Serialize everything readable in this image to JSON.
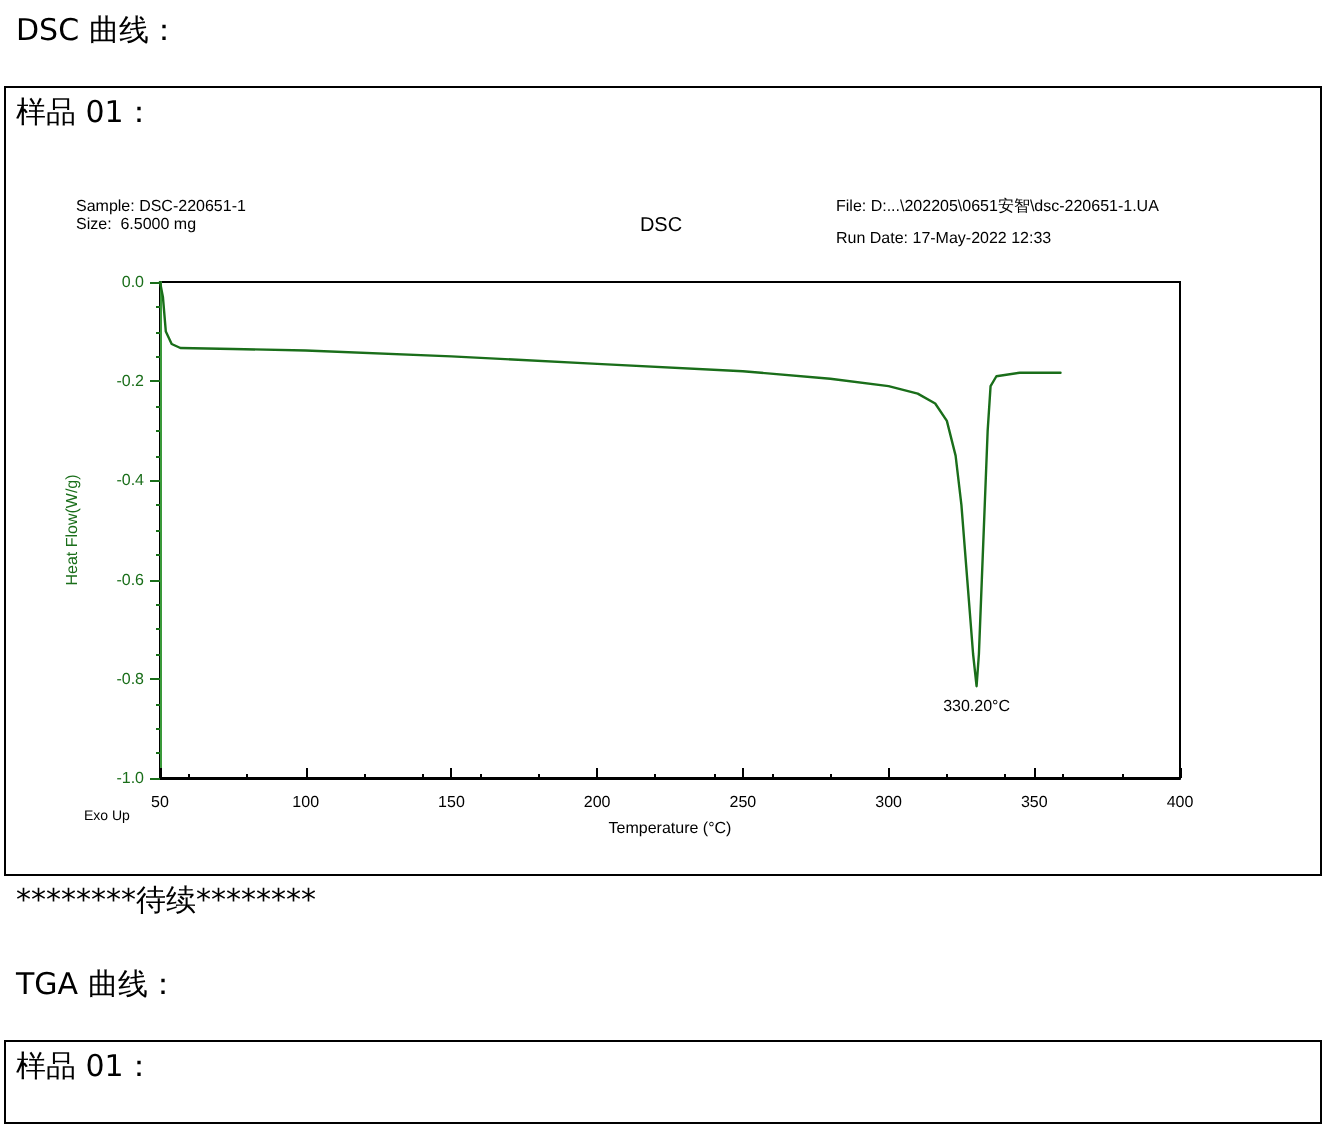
{
  "chart_data": {
    "type": "line",
    "title": "DSC",
    "xlabel": "Temperature (°C)",
    "ylabel": "Heat Flow(W/g)",
    "annotations": [
      "DSC 曲线：",
      "样品 01：",
      "Sample: DSC-220651-1",
      "Size:  6.5000 mg",
      "File: D:...\\202205\\0651安智\\dsc-220651-1.UA",
      "Run Date: 17-May-2022 12:33",
      "Exo Up",
      {
        "text": "330.20°C",
        "x": 330.2,
        "y": -0.815
      },
      "********待续********",
      "TGA 曲线：",
      "样品 01："
    ],
    "xlim": [
      50,
      400
    ],
    "xticks": [
      50,
      100,
      150,
      200,
      250,
      300,
      350,
      400
    ],
    "ylim": [
      -1,
      0
    ],
    "yticks": [
      {
        "value": -1,
        "label": "-1.0"
      },
      {
        "value": -0.8,
        "label": "-0.8"
      },
      {
        "value": -0.6,
        "label": "-0.6"
      },
      {
        "value": -0.4,
        "label": "-0.4"
      },
      {
        "value": -0.2,
        "label": "-0.2"
      },
      {
        "value": 0,
        "label": "0.0"
      }
    ],
    "grid": false,
    "marker": "none",
    "line_style": "solid",
    "series": [
      {
        "color": "#1a6e1a",
        "x": [
          50,
          51,
          52,
          54,
          57,
          75,
          100,
          150,
          200,
          250,
          280,
          300,
          310,
          316,
          320,
          323,
          325,
          327,
          329,
          330.2,
          331,
          332,
          333,
          334,
          335,
          337,
          345,
          359
        ],
        "values": [
          0,
          -0.03,
          -0.1,
          -0.125,
          -0.133,
          -0.135,
          -0.138,
          -0.15,
          -0.165,
          -0.18,
          -0.195,
          -0.21,
          -0.225,
          -0.245,
          -0.28,
          -0.35,
          -0.45,
          -0.6,
          -0.75,
          -0.815,
          -0.75,
          -0.6,
          -0.45,
          -0.3,
          -0.21,
          -0.19,
          -0.183,
          -0.183
        ]
      }
    ]
  }
}
